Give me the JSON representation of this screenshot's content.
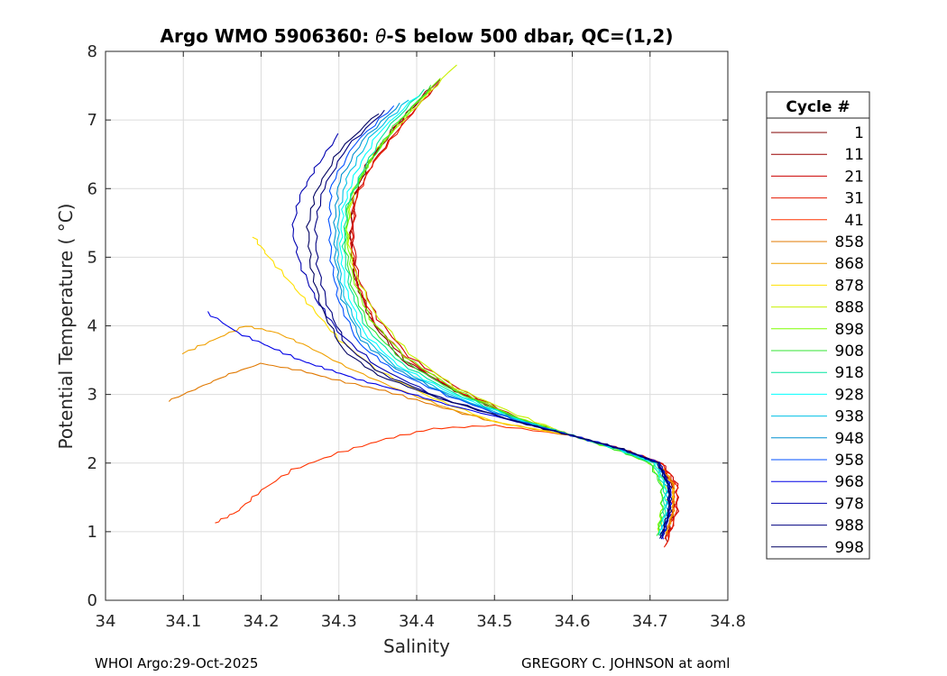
{
  "chart_data": {
    "type": "line",
    "title_prefix": "Argo WMO 5906360: ",
    "title_theta": "θ",
    "title_suffix": "-S below 500 dbar,  QC=(1,2)",
    "xlabel": "Salinity",
    "ylabel": "Potential Temperature ( °C)",
    "xlim": [
      34.0,
      34.8
    ],
    "ylim": [
      0,
      8
    ],
    "xticks": [
      34.0,
      34.1,
      34.2,
      34.3,
      34.4,
      34.5,
      34.6,
      34.7,
      34.8
    ],
    "xtick_labels": [
      "34",
      "34.1",
      "34.2",
      "34.3",
      "34.4",
      "34.5",
      "34.6",
      "34.7",
      "34.8"
    ],
    "yticks": [
      0,
      1,
      2,
      3,
      4,
      5,
      6,
      7,
      8
    ],
    "ytick_labels": [
      "0",
      "1",
      "2",
      "3",
      "4",
      "5",
      "6",
      "7",
      "8"
    ],
    "grid": true,
    "legend_title": "Cycle #",
    "legend_position": "outside-right",
    "series": [
      {
        "name": "1",
        "color": "#800000",
        "x": [
          34.43,
          34.38,
          34.34,
          34.32,
          34.315,
          34.32,
          34.34,
          34.38,
          34.45,
          34.53,
          34.6,
          34.66,
          34.71,
          34.73,
          34.73,
          34.72
        ],
        "y": [
          7.6,
          7.0,
          6.4,
          5.9,
          5.3,
          4.7,
          4.1,
          3.5,
          3.05,
          2.65,
          2.4,
          2.2,
          2.0,
          1.7,
          1.3,
          0.9
        ]
      },
      {
        "name": "11",
        "color": "#990000",
        "x": [
          34.42,
          34.375,
          34.335,
          34.318,
          34.315,
          34.322,
          34.345,
          34.385,
          34.45,
          34.53,
          34.6,
          34.66,
          34.71,
          34.73,
          34.73,
          34.72
        ],
        "y": [
          7.5,
          6.95,
          6.35,
          5.85,
          5.25,
          4.65,
          4.05,
          3.5,
          3.05,
          2.65,
          2.4,
          2.2,
          2.0,
          1.65,
          1.25,
          0.85
        ]
      },
      {
        "name": "21",
        "color": "#cc0000",
        "x": [
          34.43,
          34.385,
          34.345,
          34.322,
          34.318,
          34.325,
          34.35,
          34.39,
          34.455,
          34.53,
          34.6,
          34.665,
          34.715,
          34.735,
          34.735,
          34.72
        ],
        "y": [
          7.55,
          7.0,
          6.4,
          5.9,
          5.3,
          4.7,
          4.1,
          3.55,
          3.08,
          2.66,
          2.4,
          2.2,
          2.0,
          1.7,
          1.3,
          0.8
        ]
      },
      {
        "name": "31",
        "color": "#e61a00",
        "x": [
          34.42,
          34.38,
          34.34,
          34.32,
          34.316,
          34.324,
          34.348,
          34.39,
          34.452,
          34.53,
          34.6,
          34.665,
          34.715,
          34.735,
          34.733,
          34.72
        ],
        "y": [
          7.45,
          6.9,
          6.3,
          5.8,
          5.2,
          4.6,
          4.0,
          3.5,
          3.05,
          2.64,
          2.4,
          2.2,
          2.0,
          1.65,
          1.25,
          0.78
        ]
      },
      {
        "name": "41",
        "color": "#ff3300",
        "x": [
          34.14,
          34.17,
          34.2,
          34.24,
          34.3,
          34.36,
          34.42,
          34.5,
          34.6,
          34.66,
          34.71,
          34.73,
          34.73,
          34.72
        ],
        "y": [
          1.12,
          1.3,
          1.6,
          1.9,
          2.15,
          2.35,
          2.5,
          2.55,
          2.4,
          2.2,
          2.0,
          1.7,
          1.3,
          0.9
        ]
      },
      {
        "name": "858",
        "color": "#e07800",
        "x": [
          34.08,
          34.12,
          34.16,
          34.2,
          34.25,
          34.3,
          34.36,
          34.42,
          34.5,
          34.6,
          34.66,
          34.71,
          34.73,
          34.73,
          34.72
        ],
        "y": [
          2.9,
          3.1,
          3.3,
          3.45,
          3.35,
          3.2,
          3.05,
          2.85,
          2.6,
          2.4,
          2.2,
          2.0,
          1.7,
          1.3,
          0.95
        ]
      },
      {
        "name": "868",
        "color": "#f0a000",
        "x": [
          34.1,
          34.14,
          34.18,
          34.22,
          34.26,
          34.31,
          34.37,
          34.44,
          34.5,
          34.6,
          34.66,
          34.71,
          34.73,
          34.73,
          34.72
        ],
        "y": [
          3.6,
          3.8,
          4.0,
          3.9,
          3.7,
          3.4,
          3.1,
          2.8,
          2.6,
          2.4,
          2.2,
          2.0,
          1.7,
          1.3,
          0.95
        ]
      },
      {
        "name": "878",
        "color": "#ffe000",
        "x": [
          34.19,
          34.21,
          34.24,
          34.27,
          34.3,
          34.35,
          34.42,
          34.5,
          34.6,
          34.66,
          34.71,
          34.73,
          34.72
        ],
        "y": [
          5.3,
          5.0,
          4.6,
          4.2,
          3.8,
          3.35,
          2.95,
          2.6,
          2.4,
          2.2,
          2.0,
          1.6,
          1.0
        ]
      },
      {
        "name": "888",
        "color": "#c8f000",
        "x": [
          34.45,
          34.4,
          34.35,
          34.32,
          34.31,
          34.32,
          34.345,
          34.39,
          34.45,
          34.53,
          34.6,
          34.66,
          34.705,
          34.72,
          34.72,
          34.71
        ],
        "y": [
          7.8,
          7.2,
          6.6,
          6.0,
          5.4,
          4.8,
          4.2,
          3.6,
          3.1,
          2.7,
          2.4,
          2.2,
          2.0,
          1.7,
          1.3,
          1.0
        ]
      },
      {
        "name": "898",
        "color": "#7fff00",
        "x": [
          34.43,
          34.38,
          34.34,
          34.315,
          34.31,
          34.318,
          34.34,
          34.385,
          34.45,
          34.53,
          34.6,
          34.655,
          34.7,
          34.715,
          34.715,
          34.71
        ],
        "y": [
          7.6,
          7.0,
          6.4,
          5.9,
          5.3,
          4.7,
          4.1,
          3.55,
          3.07,
          2.66,
          2.4,
          2.2,
          2.0,
          1.7,
          1.35,
          1.0
        ]
      },
      {
        "name": "908",
        "color": "#33e633",
        "x": [
          34.42,
          34.37,
          34.335,
          34.312,
          34.308,
          34.316,
          34.338,
          34.382,
          34.448,
          34.53,
          34.6,
          34.655,
          34.7,
          34.715,
          34.716,
          34.71
        ],
        "y": [
          7.5,
          6.9,
          6.3,
          5.8,
          5.2,
          4.6,
          4.0,
          3.5,
          3.05,
          2.65,
          2.4,
          2.2,
          2.0,
          1.65,
          1.3,
          0.95
        ]
      },
      {
        "name": "918",
        "color": "#00e6a0",
        "x": [
          34.41,
          34.36,
          34.33,
          34.31,
          34.306,
          34.314,
          34.336,
          34.38,
          34.446,
          34.53,
          34.6,
          34.658,
          34.704,
          34.718,
          34.718,
          34.712
        ],
        "y": [
          7.45,
          6.85,
          6.25,
          5.75,
          5.15,
          4.55,
          3.95,
          3.45,
          3.03,
          2.64,
          2.4,
          2.2,
          2.0,
          1.65,
          1.3,
          0.95
        ]
      },
      {
        "name": "928",
        "color": "#00ffff",
        "x": [
          34.4,
          34.35,
          34.32,
          34.305,
          34.302,
          34.31,
          34.332,
          34.376,
          34.444,
          34.53,
          34.6,
          34.66,
          34.706,
          34.72,
          34.72,
          34.713
        ],
        "y": [
          7.35,
          6.8,
          6.2,
          5.7,
          5.1,
          4.5,
          3.9,
          3.42,
          3.02,
          2.63,
          2.4,
          2.2,
          2.0,
          1.65,
          1.3,
          0.95
        ]
      },
      {
        "name": "938",
        "color": "#00c0e6",
        "x": [
          34.39,
          34.34,
          34.31,
          34.3,
          34.298,
          34.306,
          34.33,
          34.374,
          34.442,
          34.53,
          34.6,
          34.662,
          34.708,
          34.722,
          34.722,
          34.714
        ],
        "y": [
          7.3,
          6.75,
          6.15,
          5.65,
          5.05,
          4.45,
          3.85,
          3.4,
          3.0,
          2.62,
          2.4,
          2.2,
          2.0,
          1.65,
          1.3,
          0.95
        ]
      },
      {
        "name": "948",
        "color": "#0090d0",
        "x": [
          34.38,
          34.33,
          34.3,
          34.295,
          34.295,
          34.304,
          34.328,
          34.372,
          34.44,
          34.53,
          34.6,
          34.663,
          34.71,
          34.724,
          34.724,
          34.715
        ],
        "y": [
          7.25,
          6.7,
          6.1,
          5.6,
          5.0,
          4.4,
          3.8,
          3.38,
          2.99,
          2.62,
          2.4,
          2.2,
          2.0,
          1.65,
          1.3,
          0.95
        ]
      },
      {
        "name": "958",
        "color": "#0050ff",
        "x": [
          34.37,
          34.32,
          34.29,
          34.288,
          34.29,
          34.3,
          34.325,
          34.37,
          34.44,
          34.53,
          34.6,
          34.664,
          34.711,
          34.725,
          34.725,
          34.716
        ],
        "y": [
          7.2,
          6.65,
          6.05,
          5.55,
          4.95,
          4.35,
          3.75,
          3.35,
          2.98,
          2.61,
          2.4,
          2.2,
          2.0,
          1.65,
          1.3,
          0.92
        ]
      },
      {
        "name": "968",
        "color": "#0000e6",
        "x": [
          34.13,
          34.17,
          34.21,
          34.25,
          34.29,
          34.33,
          34.38,
          34.44,
          34.53,
          34.6,
          34.665,
          34.712,
          34.726,
          34.726,
          34.716
        ],
        "y": [
          4.2,
          3.9,
          3.7,
          3.5,
          3.35,
          3.2,
          3.05,
          2.85,
          2.6,
          2.4,
          2.2,
          2.0,
          1.65,
          1.3,
          0.9
        ]
      },
      {
        "name": "978",
        "color": "#0000b0",
        "x": [
          34.3,
          34.27,
          34.25,
          34.24,
          34.25,
          34.27,
          34.3,
          34.35,
          34.43,
          34.53,
          34.6,
          34.665,
          34.712,
          34.726,
          34.726,
          34.715
        ],
        "y": [
          6.8,
          6.3,
          5.9,
          5.4,
          4.9,
          4.4,
          3.9,
          3.4,
          2.95,
          2.6,
          2.4,
          2.2,
          2.0,
          1.65,
          1.3,
          0.9
        ]
      },
      {
        "name": "988",
        "color": "#000080",
        "x": [
          34.36,
          34.31,
          34.28,
          34.27,
          34.272,
          34.285,
          34.31,
          34.355,
          34.43,
          34.53,
          34.6,
          34.665,
          34.711,
          34.725,
          34.725,
          34.714
        ],
        "y": [
          7.15,
          6.6,
          6.0,
          5.5,
          4.9,
          4.3,
          3.7,
          3.3,
          2.95,
          2.6,
          2.4,
          2.2,
          2.0,
          1.65,
          1.3,
          0.9
        ]
      },
      {
        "name": "998",
        "color": "#000060",
        "x": [
          34.35,
          34.3,
          34.27,
          34.26,
          34.264,
          34.278,
          34.305,
          34.35,
          34.43,
          34.53,
          34.6,
          34.665,
          34.71,
          34.724,
          34.724,
          34.713
        ],
        "y": [
          7.1,
          6.55,
          5.95,
          5.45,
          4.85,
          4.25,
          3.65,
          3.28,
          2.94,
          2.6,
          2.4,
          2.2,
          2.0,
          1.65,
          1.3,
          0.9
        ]
      }
    ]
  },
  "footer": {
    "left": "WHOI Argo:29-Oct-2025",
    "right": "GREGORY C. JOHNSON at aoml"
  }
}
